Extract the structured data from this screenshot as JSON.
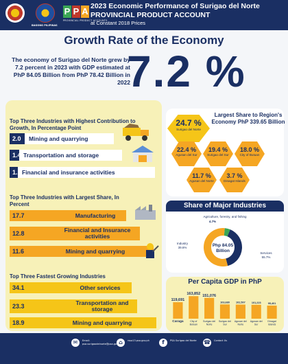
{
  "header": {
    "logo1_caption": "",
    "logo2_caption": "BAGONG PILIPINAS",
    "ppa_letters": [
      "P",
      "P",
      "A"
    ],
    "ppa_caption": "PROVINCIAL PRODUCT ACCOUNTS",
    "title_line1": "2023 Economic Performance of Surigao del Norte",
    "title_line2": "PROVINCIAL PRODUCT ACCOUNT",
    "title_line3": "at Constant 2018 Prices"
  },
  "main": {
    "title": "Growth Rate of the Economy",
    "lead": "The economy of Surigao del Norte grew by 7.2 percent in 2023 with GDP estimated at PhP 84.05 Billion from PhP 78.42 Billion in 2022",
    "growth_value": "7.2 %"
  },
  "contribution": {
    "title": "Top Three Industries with Highest Contribution to Growth, In Percentage Point",
    "rows": [
      {
        "value": "2.0",
        "label": "Mining and quarrying"
      },
      {
        "value": "1.4",
        "label": "Transportation and storage"
      },
      {
        "value": "1.1",
        "label": "Financial and insurance activities"
      }
    ]
  },
  "largest_share": {
    "title": "Top Three Industries with Largest Share, In Percent",
    "rows": [
      {
        "value": "17.7",
        "label": "Manufacturing"
      },
      {
        "value": "12.8",
        "label": "Financial and Insurance activities"
      },
      {
        "value": "11.6",
        "label": "Mining and quarrying"
      }
    ]
  },
  "fastest": {
    "title": "Top Three Fastest Growing Industries",
    "rows": [
      {
        "value": "34.1",
        "label": "Other services"
      },
      {
        "value": "23.3",
        "label": "Transportation and storage"
      },
      {
        "value": "18.9",
        "label": "Mining and quarrying"
      }
    ]
  },
  "region_share": {
    "title": "Largest Share to Region's Economy PhP 339.65 Billion",
    "items": [
      {
        "value": "24.7 %",
        "name": "Surigao del Norte"
      },
      {
        "value": "22.4 %",
        "name": "Agusan del Sur"
      },
      {
        "value": "19.4 %",
        "name": "Surigao del Sur"
      },
      {
        "value": "18.0 %",
        "name": "City of Butuan"
      },
      {
        "value": "11.7 %",
        "name": "Agusan del Norte"
      },
      {
        "value": "3.7 %",
        "name": "Dinagat Islands"
      }
    ]
  },
  "major_industries": {
    "title": "Share of Major Industries",
    "center_line1": "Php 84.05",
    "center_line2": "Billion",
    "label_agri": "Agriculture, forestry, and fishing",
    "label_agri_value": "4.7%",
    "label_industry": "Industry",
    "label_industry_value": "39.6%",
    "label_services": "Services",
    "label_services_value": "55.7%"
  },
  "per_capita": {
    "title": "Per Capita GDP in PhP"
  },
  "chart_data": [
    {
      "type": "pie",
      "title": "Share of Major Industries",
      "labels": [
        "Agriculture, forestry, and fishing",
        "Industry",
        "Services"
      ],
      "values": [
        4.7,
        39.6,
        55.7
      ],
      "colors": [
        "#3aa655",
        "#1a2f63",
        "#f5a623"
      ]
    },
    {
      "type": "bar",
      "title": "Per Capita GDP in PhP",
      "categories": [
        "Caraga",
        "City of Butuan",
        "Surigao del Norte",
        "Surigao del Sur",
        "Agusan del Norte",
        "Agusan del Sur",
        "Dinagat Islands"
      ],
      "values": [
        119691,
        163852,
        151076,
        103680,
        102507,
        101223,
        95401
      ],
      "value_labels": [
        "119,691",
        "163,852",
        "151,076",
        "103,680",
        "102,507",
        "101,223",
        "95,401"
      ],
      "colors": [
        "#f5a623",
        "#f5a623",
        "#f5a623",
        "#f5a623",
        "#f5a623",
        "#f5a623",
        "#f5a623"
      ],
      "ylim": [
        0,
        170000
      ]
    }
  ],
  "footer": {
    "items": [
      {
        "icon": "email-icon",
        "glyph": "✉",
        "text": "Email: psa.surigaodelnorte@psa.gov.ph"
      },
      {
        "icon": "web-icon",
        "glyph": "⌂",
        "text": "rsso13.psa.gov.ph"
      },
      {
        "icon": "facebook-icon",
        "glyph": "f",
        "text": "PSA Surigao del Norte"
      },
      {
        "icon": "phone-icon",
        "glyph": "☎",
        "text": "Contact Us"
      }
    ],
    "colors": {
      "accent": "#f5a623",
      "navy": "#1a2f63",
      "yellow": "#f5c518",
      "green": "#3aa655"
    }
  }
}
